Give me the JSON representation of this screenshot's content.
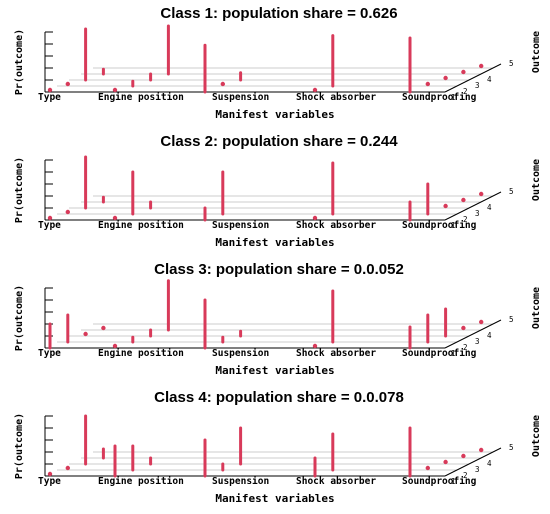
{
  "chart_data": [
    {
      "type": "bar",
      "title": "Class 1: population share = 0.626",
      "xlabel": "Manifest variables",
      "ylabel": "Pr(outcome)",
      "zlabel": "Outcome",
      "categories": [
        "Type",
        "Engine position",
        "Suspension",
        "Shock absorber",
        "Soundproofing"
      ],
      "outcome_ticks": [
        "1",
        "2",
        "3",
        "4",
        "5"
      ],
      "ylim": [
        0,
        1
      ],
      "series": [
        {
          "values": [
            0.02,
            0.05,
            0.85,
            0.08,
            null
          ]
        },
        {
          "values": [
            0.02,
            0.08,
            0.1,
            0.8,
            null
          ]
        },
        {
          "values": [
            0.78,
            0.05,
            0.12,
            null,
            null
          ]
        },
        {
          "values": [
            0.03,
            0.84,
            null,
            null,
            null
          ]
        },
        {
          "values": [
            0.9,
            0.03,
            0.02,
            0.02,
            0.02
          ]
        }
      ]
    },
    {
      "type": "bar",
      "title": "Class 2: population share = 0.244",
      "xlabel": "Manifest variables",
      "ylabel": "Pr(outcome)",
      "zlabel": "Outcome",
      "categories": [
        "Type",
        "Engine position",
        "Suspension",
        "Shock absorber",
        "Soundproofing"
      ],
      "outcome_ticks": [
        "1",
        "2",
        "3",
        "4",
        "5"
      ],
      "ylim": [
        0,
        1
      ],
      "series": [
        {
          "values": [
            0.02,
            0.05,
            0.85,
            0.08,
            null
          ]
        },
        {
          "values": [
            0.05,
            0.7,
            0.1,
            null,
            null
          ]
        },
        {
          "values": [
            0.2,
            0.7,
            null,
            null,
            null
          ]
        },
        {
          "values": [
            0.03,
            0.85,
            null,
            null,
            null
          ]
        },
        {
          "values": [
            0.3,
            0.5,
            0.03,
            0.02,
            0.02
          ]
        }
      ]
    },
    {
      "type": "bar",
      "title": "Class 3: population share = 0.0.052",
      "xlabel": "Manifest variables",
      "ylabel": "Pr(outcome)",
      "zlabel": "Outcome",
      "categories": [
        "Type",
        "Engine position",
        "Suspension",
        "Shock absorber",
        "Soundproofing"
      ],
      "outcome_ticks": [
        "1",
        "2",
        "3",
        "4",
        "5"
      ],
      "ylim": [
        0,
        1
      ],
      "series": [
        {
          "values": [
            0.4,
            0.45,
            0.05,
            0.02,
            null
          ]
        },
        {
          "values": [
            0.02,
            0.08,
            0.1,
            0.82,
            null
          ]
        },
        {
          "values": [
            0.8,
            0.08,
            0.08,
            null,
            null
          ]
        },
        {
          "values": [
            0.05,
            0.85,
            null,
            null,
            null
          ]
        },
        {
          "values": [
            0.35,
            0.45,
            0.45,
            0.02,
            0.02
          ]
        }
      ]
    },
    {
      "type": "bar",
      "title": "Class 4: population share = 0.0.078",
      "xlabel": "Manifest variables",
      "ylabel": "Pr(outcome)",
      "zlabel": "Outcome",
      "categories": [
        "Type",
        "Engine position",
        "Suspension",
        "Shock absorber",
        "Soundproofing"
      ],
      "outcome_ticks": [
        "1",
        "2",
        "3",
        "4",
        "5"
      ],
      "ylim": [
        0,
        1
      ],
      "series": [
        {
          "values": [
            0.02,
            0.05,
            0.8,
            0.15,
            null
          ]
        },
        {
          "values": [
            0.5,
            0.4,
            0.1,
            null,
            null
          ]
        },
        {
          "values": [
            0.6,
            0.1,
            0.6,
            null,
            null
          ]
        },
        {
          "values": [
            0.3,
            0.6,
            null,
            null,
            null
          ]
        },
        {
          "values": [
            0.8,
            0.03,
            0.03,
            0.03,
            0.03
          ]
        }
      ]
    }
  ]
}
